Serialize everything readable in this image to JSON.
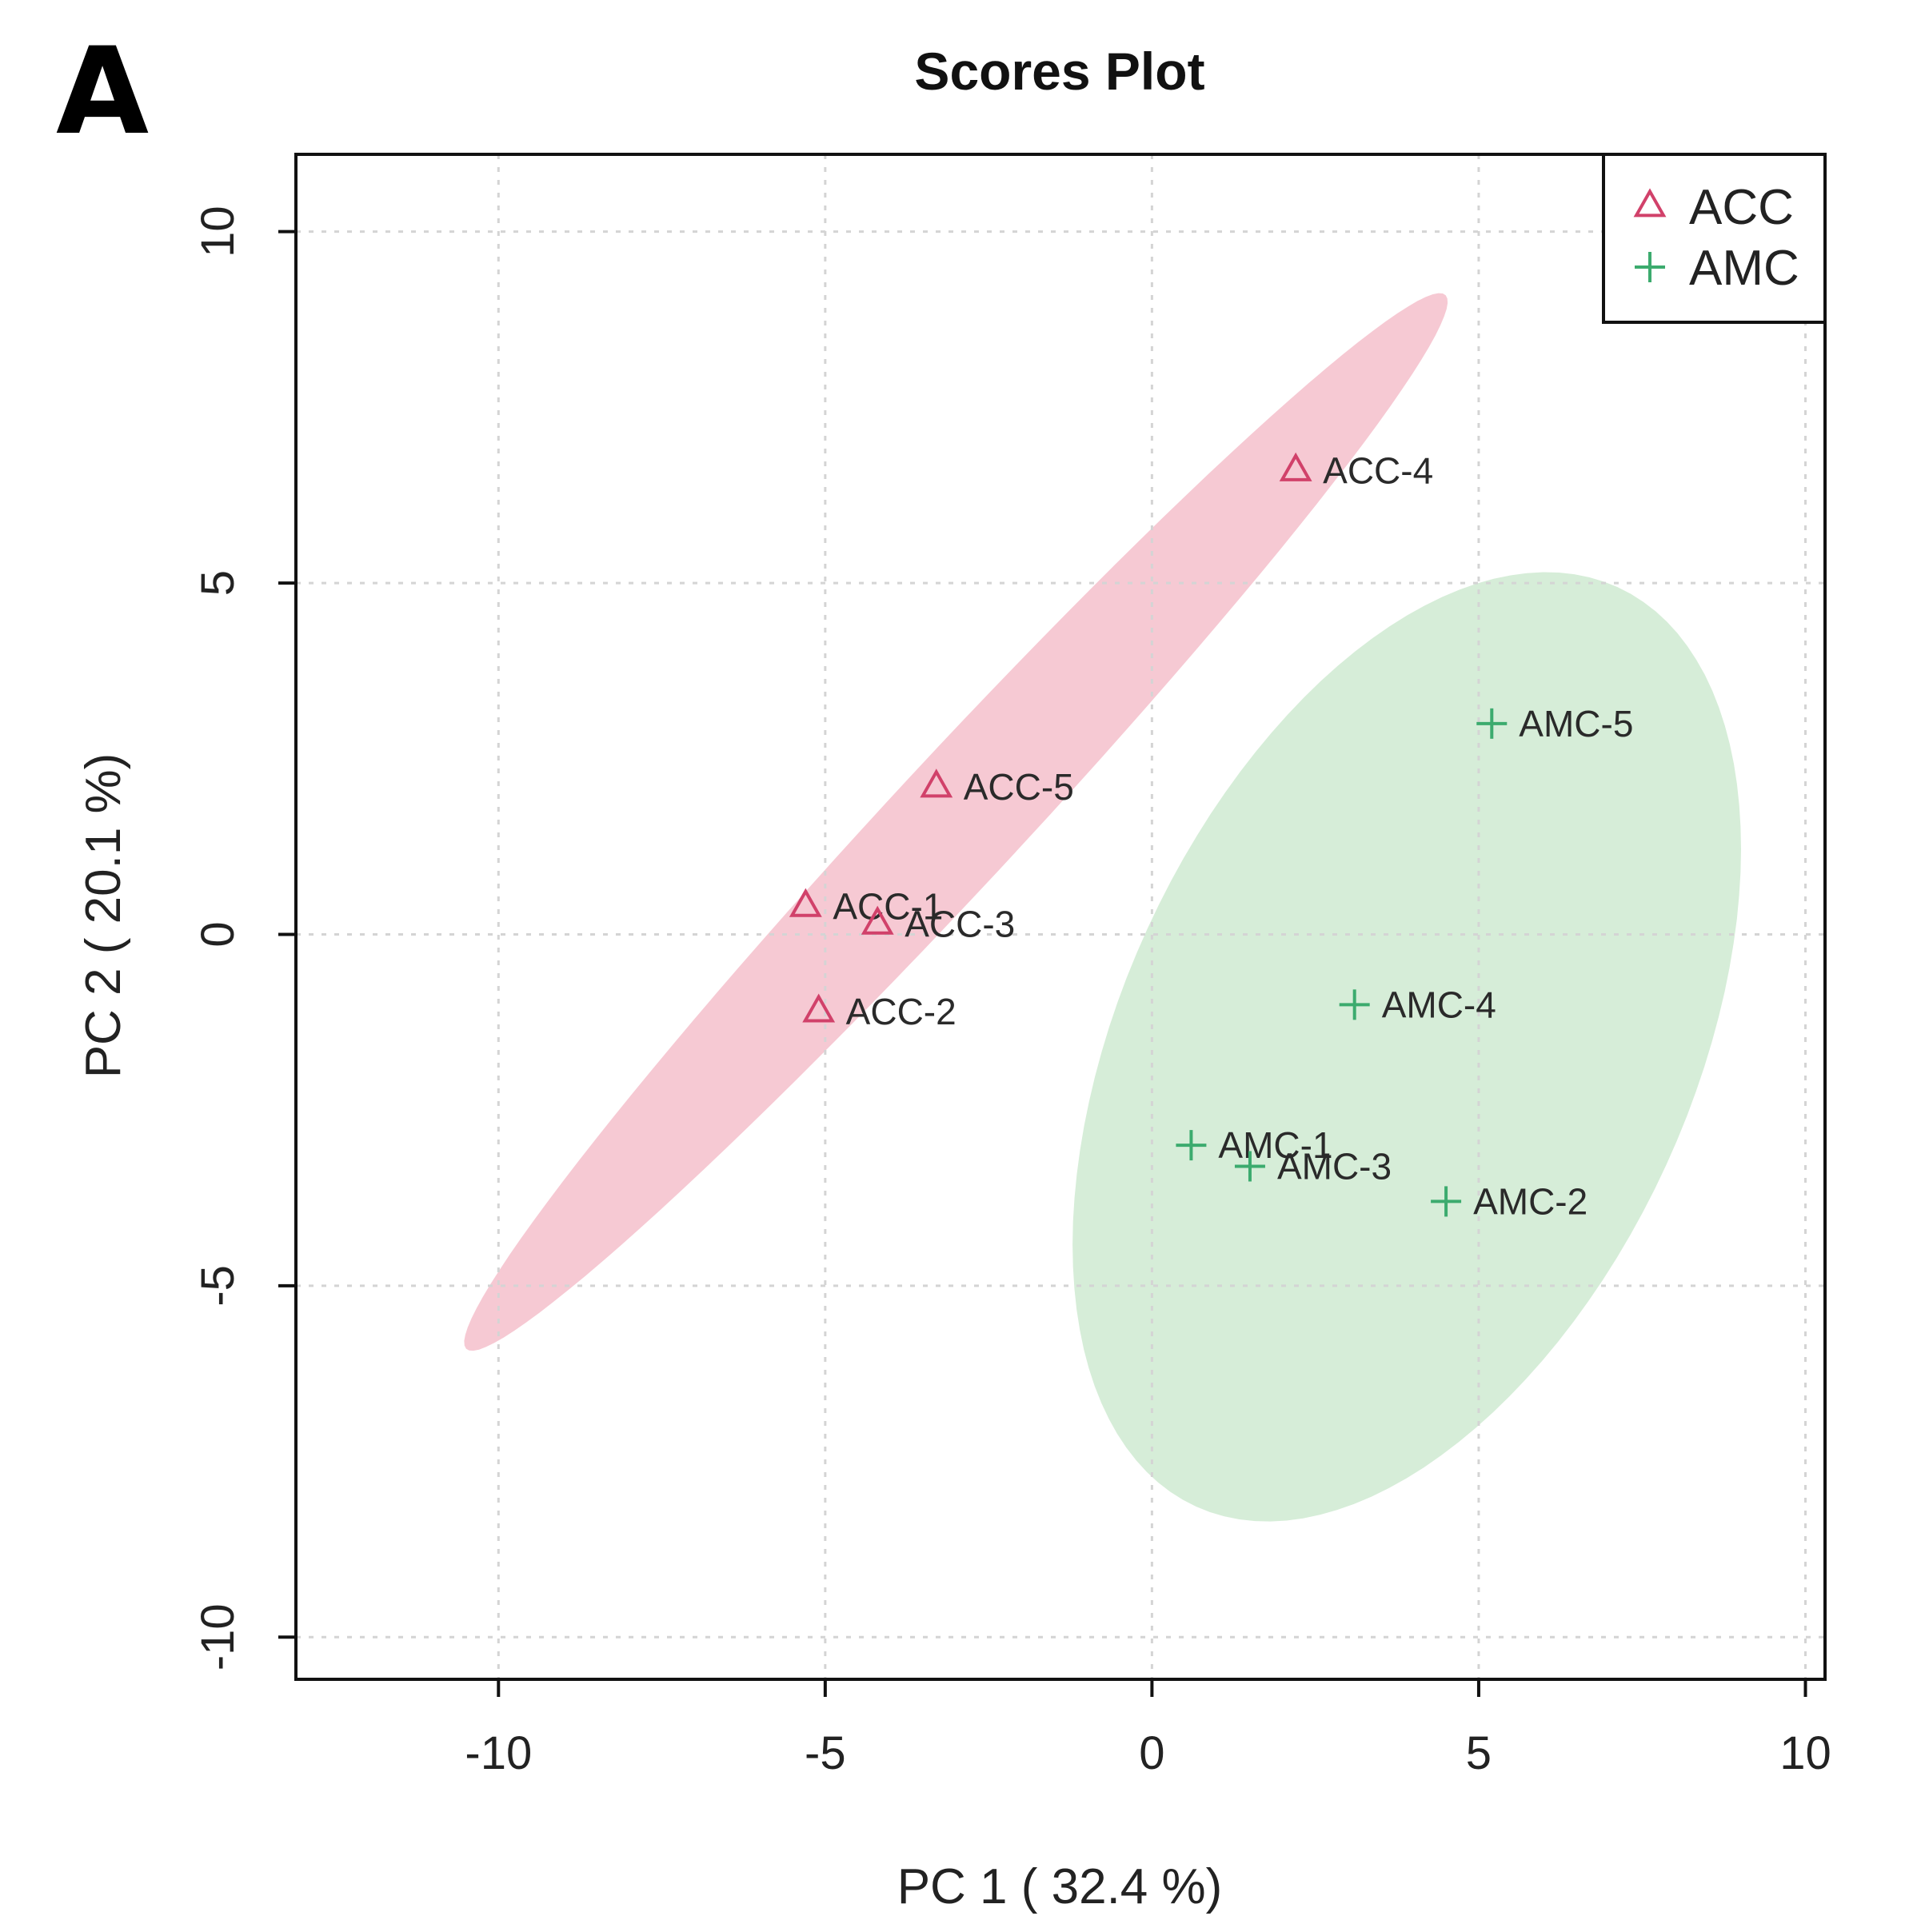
{
  "panel_label": "A",
  "chart_data": {
    "type": "scatter",
    "title": "Scores Plot",
    "xlabel": "PC 1 ( 32.4 %)",
    "ylabel": "PC 2 ( 20.1 %)",
    "xlim": [
      -13.1,
      10.3
    ],
    "ylim": [
      -10.6,
      11.1
    ],
    "xticks": [
      -10,
      -5,
      0,
      5,
      10
    ],
    "yticks": [
      -10,
      -5,
      0,
      5,
      10
    ],
    "xtick_labels": [
      "-10",
      "-5",
      "0",
      "5",
      "10"
    ],
    "ytick_labels": [
      "-10",
      "-5",
      "0",
      "5",
      "10"
    ],
    "grid": true,
    "legend_position": "top-right",
    "colors": {
      "ACC": "#d1416a",
      "AMC": "#3cab6e",
      "ACC_fill": "#f6c9d3",
      "AMC_fill": "#d6edd8"
    },
    "series": [
      {
        "name": "ACC",
        "marker": "triangle",
        "points": [
          {
            "label": "ACC-1",
            "x": -5.3,
            "y": 0.4
          },
          {
            "label": "ACC-2",
            "x": -5.1,
            "y": -1.1
          },
          {
            "label": "ACC-3",
            "x": -4.2,
            "y": 0.15
          },
          {
            "label": "ACC-4",
            "x": 2.2,
            "y": 6.6
          },
          {
            "label": "ACC-5",
            "x": -3.3,
            "y": 2.1
          }
        ],
        "ellipse": {
          "cx": -3.0,
          "cy": 1.6,
          "semi_major": 10.6,
          "semi_minor": 0.95,
          "angle_deg": 45
        }
      },
      {
        "name": "AMC",
        "marker": "plus",
        "points": [
          {
            "label": "AMC-1",
            "x": 0.6,
            "y": -3.0
          },
          {
            "label": "AMC-2",
            "x": 4.5,
            "y": -3.8
          },
          {
            "label": "AMC-3",
            "x": 1.5,
            "y": -3.3
          },
          {
            "label": "AMC-4",
            "x": 3.1,
            "y": -1.0
          },
          {
            "label": "AMC-5",
            "x": 5.2,
            "y": 3.0
          }
        ],
        "ellipse": {
          "cx": 3.9,
          "cy": -1.6,
          "semi_major": 7.3,
          "semi_minor": 4.3,
          "angle_deg": 62
        }
      }
    ]
  }
}
